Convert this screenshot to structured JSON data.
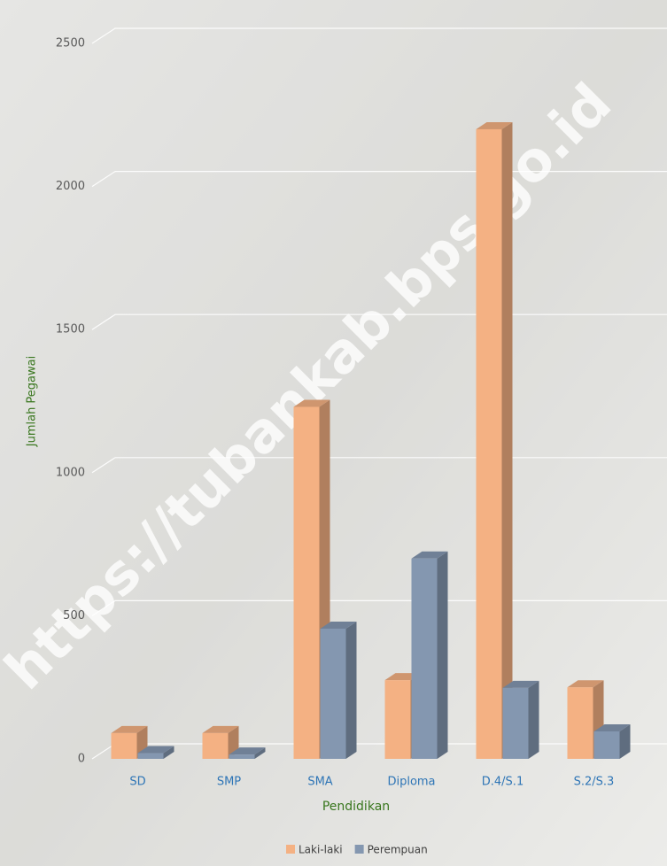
{
  "chart_data": {
    "type": "bar3d",
    "categories": [
      "SD",
      "SMP",
      "SMA",
      "Diploma",
      "D.4/S.1",
      "S.2/S.3"
    ],
    "series": [
      {
        "name": "Laki-laki",
        "color": "#f4b183",
        "values": [
          90,
          90,
          1230,
          275,
          2200,
          250
        ]
      },
      {
        "name": "Perempuan",
        "color": "#8497b0",
        "values": [
          20,
          15,
          455,
          700,
          248,
          96
        ]
      }
    ],
    "ylim": [
      0,
      2500
    ],
    "yticks": [
      0,
      500,
      1000,
      1500,
      2000,
      2500
    ],
    "y_label": "Jumlah Pegawai",
    "x_label": "Pendidikan",
    "grid": true,
    "legend": "bottom",
    "watermark": "https://tubankab.bps.go.id"
  }
}
